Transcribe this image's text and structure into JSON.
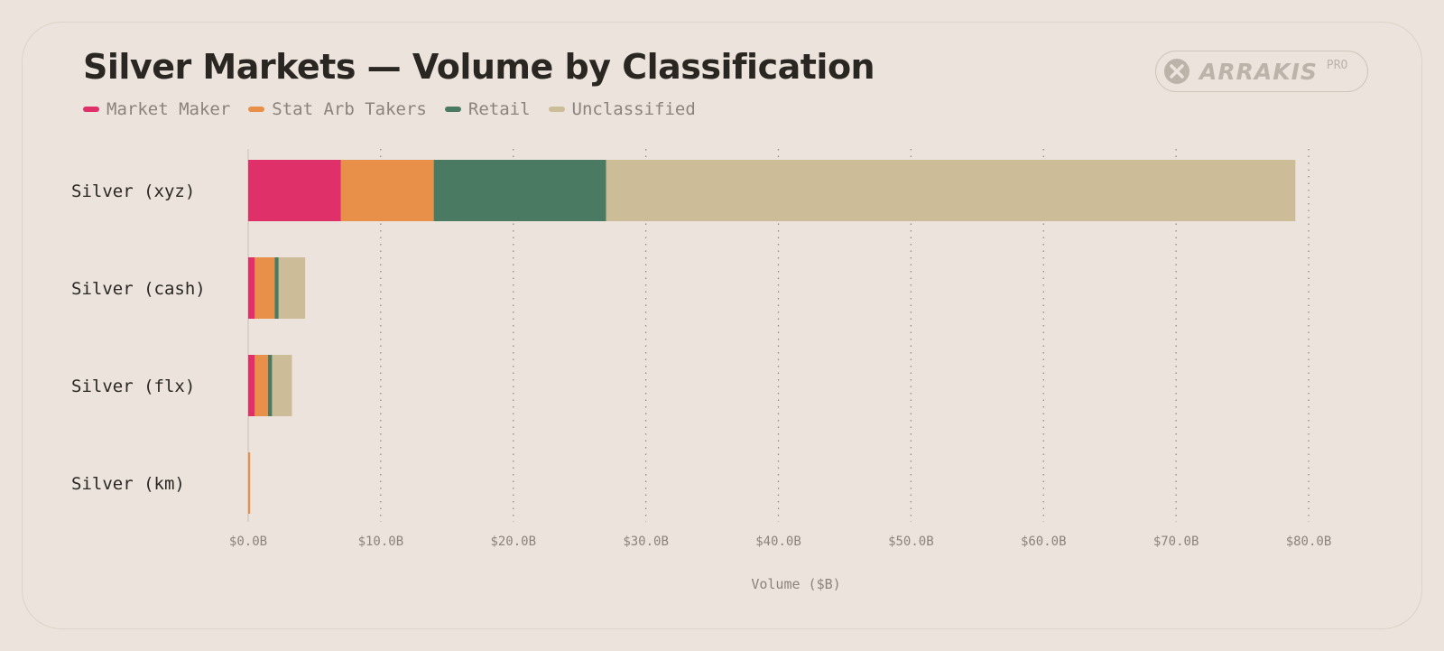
{
  "title": "Silver Markets — Volume by Classification",
  "brand": {
    "name": "ARRAKIS",
    "tier": "PRO",
    "icon": "x-circle-icon"
  },
  "legend": [
    {
      "label": "Market Maker",
      "color": "#e03069"
    },
    {
      "label": "Stat Arb Takers",
      "color": "#e8904a"
    },
    {
      "label": "Retail",
      "color": "#4a7a62"
    },
    {
      "label": "Unclassified",
      "color": "#cdbc98"
    }
  ],
  "chart_data": {
    "type": "bar",
    "orientation": "horizontal",
    "stacked": true,
    "categories": [
      "Silver (xyz)",
      "Silver (cash)",
      "Silver (flx)",
      "Silver (km)"
    ],
    "series": [
      {
        "name": "Market Maker",
        "values": [
          7.0,
          0.5,
          0.5,
          0.0
        ]
      },
      {
        "name": "Stat Arb Takers",
        "values": [
          7.0,
          1.5,
          1.0,
          0.15
        ]
      },
      {
        "name": "Retail",
        "values": [
          13.0,
          0.3,
          0.3,
          0.0
        ]
      },
      {
        "name": "Unclassified",
        "values": [
          52.0,
          2.0,
          1.5,
          0.0
        ]
      }
    ],
    "xlim": [
      0,
      80
    ],
    "xticks": [
      0,
      10,
      20,
      30,
      40,
      50,
      60,
      70,
      80
    ],
    "xtick_labels": [
      "$0.0B",
      "$10.0B",
      "$20.0B",
      "$30.0B",
      "$40.0B",
      "$50.0B",
      "$60.0B",
      "$70.0B",
      "$80.0B"
    ],
    "xlabel": "Volume ($B)",
    "ylabel": "",
    "grid": "vertical-dotted",
    "legend_position": "top-left"
  }
}
